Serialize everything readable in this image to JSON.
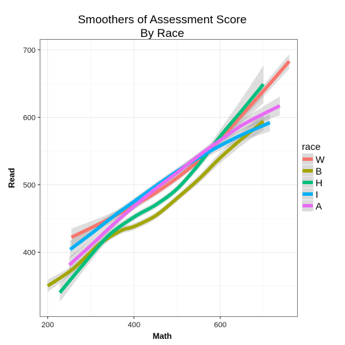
{
  "chart_data": {
    "type": "line",
    "title_line1": "Smoothers of Assessment Score",
    "title_line2": "By Race",
    "xlabel": "Math",
    "ylabel": "Read",
    "xlim": [
      183,
      778
    ],
    "ylim": [
      305,
      715
    ],
    "x_ticks": [
      200,
      400,
      600
    ],
    "y_ticks": [
      400,
      500,
      600,
      700
    ],
    "x_tick_labels": [
      "200",
      "400",
      "600"
    ],
    "y_tick_labels": [
      "400",
      "500",
      "600",
      "700"
    ],
    "grid": true,
    "legend_title": "race",
    "legend_position": "right",
    "series": [
      {
        "name": "W",
        "color": "#F8766D",
        "points": [
          [
            255,
            422
          ],
          [
            350,
            452
          ],
          [
            450,
            488
          ],
          [
            550,
            536
          ],
          [
            650,
            603
          ],
          [
            760,
            683
          ]
        ],
        "band_width": [
          13,
          7,
          5,
          5,
          7,
          11
        ]
      },
      {
        "name": "B",
        "color": "#A3A500",
        "points": [
          [
            200,
            350
          ],
          [
            260,
            376
          ],
          [
            320,
            412
          ],
          [
            370,
            432
          ],
          [
            400,
            438
          ],
          [
            450,
            454
          ],
          [
            500,
            480
          ],
          [
            550,
            508
          ],
          [
            600,
            540
          ],
          [
            650,
            568
          ],
          [
            700,
            594
          ]
        ],
        "band_width": [
          9,
          6,
          5,
          5,
          5,
          5,
          5,
          6,
          8,
          10,
          13
        ]
      },
      {
        "name": "H",
        "color": "#00BF7D",
        "points": [
          [
            228,
            340
          ],
          [
            280,
            380
          ],
          [
            340,
            424
          ],
          [
            400,
            452
          ],
          [
            450,
            470
          ],
          [
            500,
            494
          ],
          [
            550,
            530
          ],
          [
            600,
            572
          ],
          [
            650,
            610
          ],
          [
            700,
            649
          ]
        ],
        "band_width": [
          14,
          10,
          7,
          5,
          5,
          5,
          6,
          10,
          18,
          28
        ]
      },
      {
        "name": "I",
        "color": "#00B0F6",
        "points": [
          [
            252,
            404
          ],
          [
            300,
            427
          ],
          [
            350,
            452
          ],
          [
            400,
            475
          ],
          [
            450,
            498
          ],
          [
            500,
            520
          ],
          [
            550,
            540
          ],
          [
            600,
            558
          ],
          [
            650,
            574
          ],
          [
            715,
            592
          ]
        ],
        "band_width": [
          13,
          9,
          6,
          5,
          5,
          5,
          6,
          7,
          9,
          13
        ]
      },
      {
        "name": "A",
        "color": "#E76BF3",
        "points": [
          [
            250,
            381
          ],
          [
            300,
            410
          ],
          [
            350,
            440
          ],
          [
            400,
            468
          ],
          [
            450,
            494
          ],
          [
            500,
            518
          ],
          [
            550,
            543
          ],
          [
            600,
            566
          ],
          [
            650,
            588
          ],
          [
            700,
            605
          ],
          [
            738,
            617
          ]
        ],
        "band_width": [
          12,
          8,
          6,
          5,
          5,
          5,
          5,
          6,
          8,
          11,
          14
        ]
      }
    ]
  }
}
